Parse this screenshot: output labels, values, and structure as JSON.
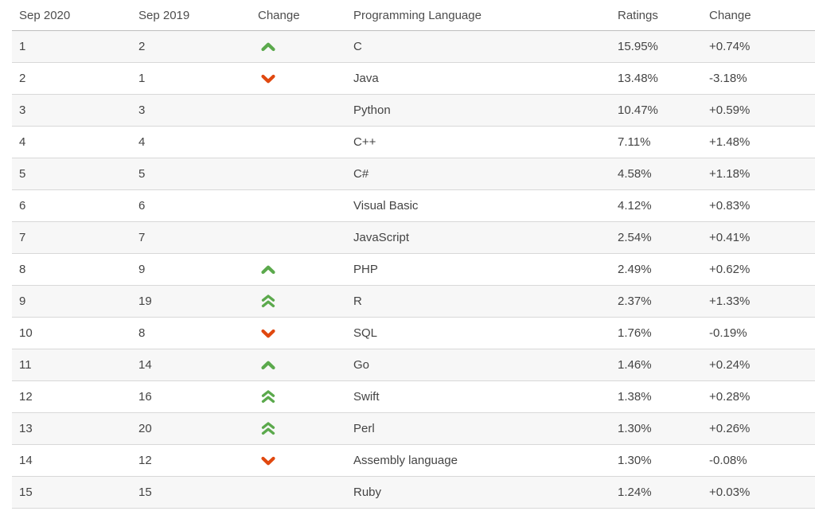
{
  "table": {
    "headers": {
      "rank_current": "Sep 2020",
      "rank_previous": "Sep 2019",
      "change_direction": "Change",
      "language": "Programming Language",
      "ratings": "Ratings",
      "ratings_change": "Change"
    },
    "rows": [
      {
        "rank2020": "1",
        "rank2019": "2",
        "change": "up",
        "language": "C",
        "ratings": "15.95%",
        "ratings_change": "+0.74%"
      },
      {
        "rank2020": "2",
        "rank2019": "1",
        "change": "down",
        "language": "Java",
        "ratings": "13.48%",
        "ratings_change": "-3.18%"
      },
      {
        "rank2020": "3",
        "rank2019": "3",
        "change": "none",
        "language": "Python",
        "ratings": "10.47%",
        "ratings_change": "+0.59%"
      },
      {
        "rank2020": "4",
        "rank2019": "4",
        "change": "none",
        "language": "C++",
        "ratings": "7.11%",
        "ratings_change": "+1.48%"
      },
      {
        "rank2020": "5",
        "rank2019": "5",
        "change": "none",
        "language": "C#",
        "ratings": "4.58%",
        "ratings_change": "+1.18%"
      },
      {
        "rank2020": "6",
        "rank2019": "6",
        "change": "none",
        "language": "Visual Basic",
        "ratings": "4.12%",
        "ratings_change": "+0.83%"
      },
      {
        "rank2020": "7",
        "rank2019": "7",
        "change": "none",
        "language": "JavaScript",
        "ratings": "2.54%",
        "ratings_change": "+0.41%"
      },
      {
        "rank2020": "8",
        "rank2019": "9",
        "change": "up",
        "language": "PHP",
        "ratings": "2.49%",
        "ratings_change": "+0.62%"
      },
      {
        "rank2020": "9",
        "rank2019": "19",
        "change": "double-up",
        "language": "R",
        "ratings": "2.37%",
        "ratings_change": "+1.33%"
      },
      {
        "rank2020": "10",
        "rank2019": "8",
        "change": "down",
        "language": "SQL",
        "ratings": "1.76%",
        "ratings_change": "-0.19%"
      },
      {
        "rank2020": "11",
        "rank2019": "14",
        "change": "up",
        "language": "Go",
        "ratings": "1.46%",
        "ratings_change": "+0.24%"
      },
      {
        "rank2020": "12",
        "rank2019": "16",
        "change": "double-up",
        "language": "Swift",
        "ratings": "1.38%",
        "ratings_change": "+0.28%"
      },
      {
        "rank2020": "13",
        "rank2019": "20",
        "change": "double-up",
        "language": "Perl",
        "ratings": "1.30%",
        "ratings_change": "+0.26%"
      },
      {
        "rank2020": "14",
        "rank2019": "12",
        "change": "down",
        "language": "Assembly language",
        "ratings": "1.30%",
        "ratings_change": "-0.08%"
      },
      {
        "rank2020": "15",
        "rank2019": "15",
        "change": "none",
        "language": "Ruby",
        "ratings": "1.24%",
        "ratings_change": "+0.03%"
      }
    ]
  },
  "colors": {
    "up_arrow": "#5ba94c",
    "down_arrow": "#e0480f",
    "row_alt_bg": "#f7f7f7",
    "row_border": "#d8d8d8",
    "header_border": "#bdbdbd",
    "text": "#444444"
  }
}
